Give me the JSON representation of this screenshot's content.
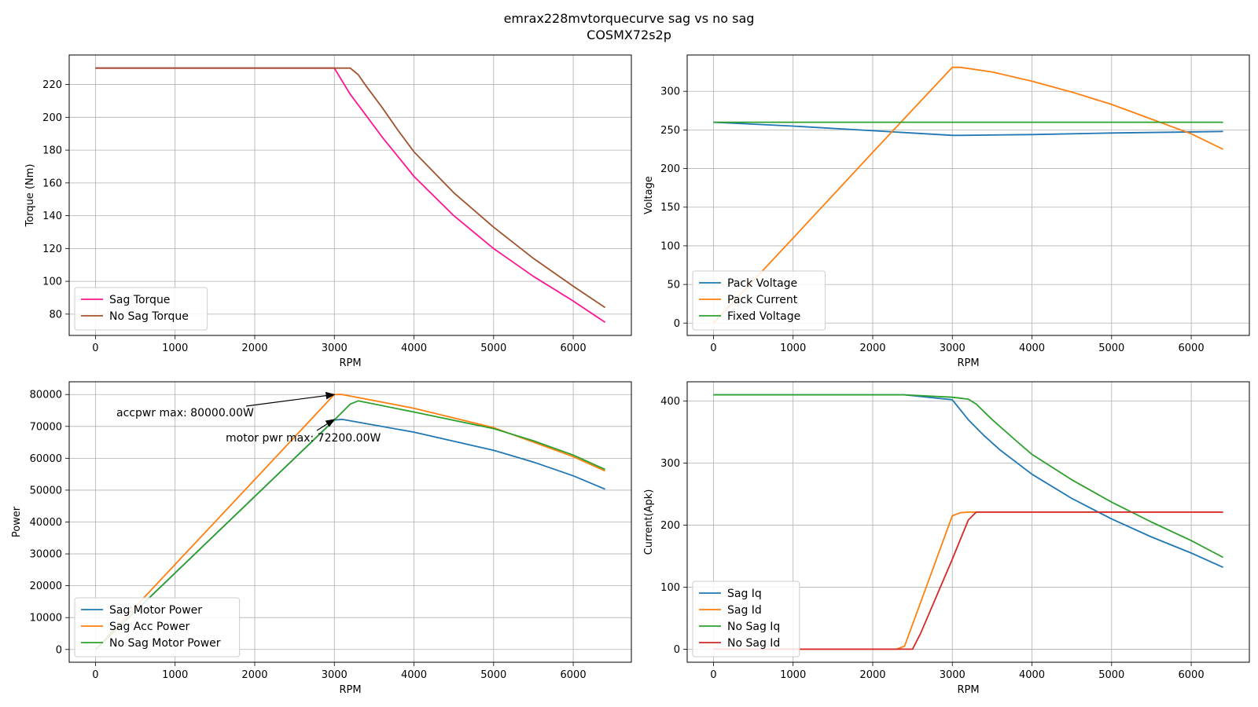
{
  "title": {
    "line1": "emrax228mvtorquecurve sag vs no sag",
    "line2": "COSMX72s2p"
  },
  "chart_data": [
    {
      "type": "line",
      "xlabel": "RPM",
      "ylabel": "Torque (Nm)",
      "xlim": [
        -330,
        6730
      ],
      "ylim": [
        67,
        238
      ],
      "xticks": [
        0,
        1000,
        2000,
        3000,
        4000,
        5000,
        6000
      ],
      "yticks": [
        80,
        100,
        120,
        140,
        160,
        180,
        200,
        220
      ],
      "grid": true,
      "legend": "lower-left",
      "series": [
        {
          "name": "Sag Torque",
          "color": "#ff1493",
          "x": [
            0,
            3000,
            3200,
            3400,
            3600,
            3800,
            4000,
            4500,
            5000,
            5500,
            6000,
            6400
          ],
          "y": [
            230,
            230,
            214,
            201,
            188,
            176,
            164,
            140,
            120,
            103,
            88,
            75
          ]
        },
        {
          "name": "No Sag Torque",
          "color": "#a0522d",
          "x": [
            0,
            3200,
            3300,
            3400,
            3600,
            3800,
            4000,
            4500,
            5000,
            5500,
            6000,
            6400
          ],
          "y": [
            230,
            230,
            226,
            219,
            206,
            192,
            179,
            154,
            133,
            114,
            97,
            84
          ]
        }
      ]
    },
    {
      "type": "line",
      "xlabel": "RPM",
      "ylabel": "Voltage",
      "xlim": [
        -330,
        6730
      ],
      "ylim": [
        -16,
        347
      ],
      "xticks": [
        0,
        1000,
        2000,
        3000,
        4000,
        5000,
        6000
      ],
      "yticks": [
        0,
        50,
        100,
        150,
        200,
        250,
        300
      ],
      "grid": true,
      "legend": "lower-left",
      "series": [
        {
          "name": "Pack Voltage",
          "color": "#1f77b4",
          "x": [
            0,
            1000,
            2000,
            3000,
            3100,
            4000,
            5000,
            6400
          ],
          "y": [
            260,
            255,
            249,
            243,
            243,
            244,
            246,
            248
          ]
        },
        {
          "name": "Pack Current",
          "color": "#ff7f0e",
          "x": [
            0,
            1000,
            2000,
            3000,
            3100,
            3500,
            4000,
            4500,
            5000,
            5500,
            6000,
            6400
          ],
          "y": [
            0,
            110,
            221,
            331,
            331,
            325,
            313,
            299,
            283,
            264,
            245,
            225
          ]
        },
        {
          "name": "Fixed Voltage",
          "color": "#2ca02c",
          "x": [
            0,
            6400
          ],
          "y": [
            260,
            260
          ]
        }
      ]
    },
    {
      "type": "line",
      "xlabel": "RPM",
      "ylabel": "Power",
      "xlim": [
        -330,
        6730
      ],
      "ylim": [
        -4000,
        84000
      ],
      "xticks": [
        0,
        1000,
        2000,
        3000,
        4000,
        5000,
        6000
      ],
      "yticks": [
        0,
        10000,
        20000,
        30000,
        40000,
        50000,
        60000,
        70000,
        80000
      ],
      "grid": true,
      "legend": "lower-left",
      "series": [
        {
          "name": "Sag Motor Power",
          "color": "#1f77b4",
          "x": [
            0,
            1000,
            2000,
            3000,
            3100,
            4000,
            5000,
            5500,
            6000,
            6400
          ],
          "y": [
            0,
            24000,
            48000,
            72000,
            72200,
            68200,
            62500,
            58800,
            54500,
            50300
          ]
        },
        {
          "name": "Sag Acc Power",
          "color": "#ff7f0e",
          "x": [
            0,
            1000,
            2000,
            3000,
            3100,
            4000,
            5000,
            6000,
            6400
          ],
          "y": [
            0,
            26700,
            53300,
            80000,
            80000,
            75700,
            69600,
            60500,
            56000
          ]
        },
        {
          "name": "No Sag Motor Power",
          "color": "#2ca02c",
          "x": [
            0,
            1000,
            2000,
            3000,
            3200,
            3300,
            4000,
            5000,
            5500,
            6000,
            6400
          ],
          "y": [
            0,
            24000,
            48000,
            72000,
            77000,
            78000,
            74500,
            69300,
            65500,
            61000,
            56500
          ]
        }
      ],
      "annotations": [
        {
          "text": "accpwr max: 80000.00W",
          "x": 3000,
          "y": 80000
        },
        {
          "text": "motor pwr max: 72200.00W",
          "x": 3000,
          "y": 72200
        }
      ]
    },
    {
      "type": "line",
      "xlabel": "RPM",
      "ylabel": "Current(Apk)",
      "xlim": [
        -330,
        6730
      ],
      "ylim": [
        -21,
        431
      ],
      "xticks": [
        0,
        1000,
        2000,
        3000,
        4000,
        5000,
        6000
      ],
      "yticks": [
        0,
        100,
        200,
        300,
        400
      ],
      "grid": true,
      "legend": "lower-left",
      "series": [
        {
          "name": "Sag Iq",
          "color": "#1f77b4",
          "x": [
            0,
            2400,
            3000,
            3200,
            3400,
            3600,
            4000,
            4500,
            5000,
            5500,
            6000,
            6400
          ],
          "y": [
            410,
            410,
            402,
            370,
            344,
            321,
            282,
            243,
            210,
            181,
            155,
            132
          ]
        },
        {
          "name": "Sag Id",
          "color": "#ff7f0e",
          "x": [
            0,
            2300,
            2400,
            2700,
            3000,
            3100,
            3200,
            6400
          ],
          "y": [
            0,
            0,
            5,
            110,
            215,
            220,
            221,
            221
          ]
        },
        {
          "name": "No Sag Iq",
          "color": "#2ca02c",
          "x": [
            0,
            2400,
            3000,
            3200,
            3300,
            3500,
            3800,
            4000,
            4500,
            5000,
            5500,
            6000,
            6400
          ],
          "y": [
            410,
            410,
            406,
            403,
            395,
            370,
            336,
            314,
            273,
            237,
            205,
            175,
            148
          ]
        },
        {
          "name": "No Sag Id",
          "color": "#d62728",
          "x": [
            0,
            2500,
            2600,
            3000,
            3200,
            3300,
            6400
          ],
          "y": [
            0,
            0,
            25,
            145,
            208,
            221,
            221
          ]
        }
      ]
    }
  ]
}
